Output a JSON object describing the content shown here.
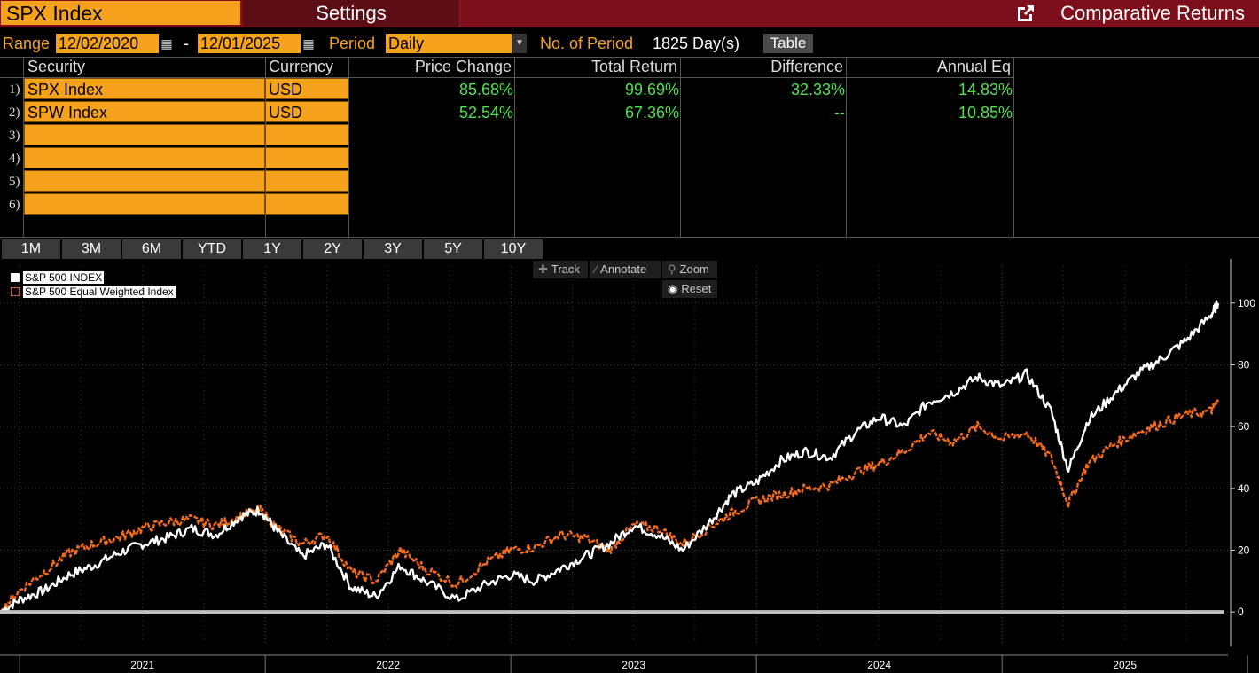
{
  "header": {
    "ticker": "SPX Index",
    "settings_label": "Settings",
    "title": "Comparative Returns",
    "title_icon": "external-link-icon"
  },
  "controls": {
    "range_label": "Range",
    "start_date": "12/02/2020",
    "dash": "-",
    "end_date": "12/01/2025",
    "calendar_icon": "calendar-icon",
    "period_label": "Period",
    "period_value": "Daily",
    "dropdown_icon": "chevron-down-icon",
    "num_period_label": "No. of Period",
    "num_period_value": "1825 Day(s)",
    "table_label": "Table"
  },
  "table": {
    "headers": [
      "Security",
      "Currency",
      "Price Change",
      "Total Return",
      "Difference",
      "Annual Eq"
    ],
    "rows": [
      {
        "num": "1)",
        "security": "SPX Index",
        "currency": "USD",
        "price_change": "85.68%",
        "total_return": "99.69%",
        "difference": "32.33%",
        "annual_eq": "14.83%"
      },
      {
        "num": "2)",
        "security": "SPW Index",
        "currency": "USD",
        "price_change": "52.54%",
        "total_return": "67.36%",
        "difference": "--",
        "annual_eq": "10.85%"
      },
      {
        "num": "3)",
        "security": "",
        "currency": ""
      },
      {
        "num": "4)",
        "security": "",
        "currency": ""
      },
      {
        "num": "5)",
        "security": "",
        "currency": ""
      },
      {
        "num": "6)",
        "security": "",
        "currency": ""
      }
    ]
  },
  "periods": [
    "1M",
    "3M",
    "6M",
    "YTD",
    "1Y",
    "2Y",
    "3Y",
    "5Y",
    "10Y"
  ],
  "toolbar": {
    "track": "Track",
    "annotate": "Annotate",
    "zoom": "Zoom",
    "reset": "Reset"
  },
  "chart_data": {
    "type": "line",
    "title": "",
    "xlabel": "",
    "ylabel": "",
    "ylim": [
      -10,
      112
    ],
    "y_ticks": [
      0,
      20,
      40,
      60,
      80,
      100
    ],
    "x_ticks": [
      "2021",
      "2022",
      "2023",
      "2024",
      "2025"
    ],
    "xlim": [
      2020.92,
      2025.92
    ],
    "legend": [
      "S&P 500 INDEX",
      "S&P 500 Equal Weighted Index"
    ],
    "legend_position": "top-left",
    "colors": {
      "spx": "#ffffff",
      "spw": "#f26a1b"
    },
    "series": [
      {
        "name": "S&P 500 INDEX",
        "x": [
          2020.92,
          2021.0,
          2021.1,
          2021.2,
          2021.3,
          2021.4,
          2021.5,
          2021.6,
          2021.7,
          2021.8,
          2021.9,
          2021.98,
          2022.05,
          2022.15,
          2022.25,
          2022.35,
          2022.45,
          2022.55,
          2022.65,
          2022.78,
          2022.9,
          2023.0,
          2023.1,
          2023.2,
          2023.3,
          2023.4,
          2023.5,
          2023.6,
          2023.7,
          2023.82,
          2023.9,
          2024.0,
          2024.1,
          2024.2,
          2024.3,
          2024.4,
          2024.5,
          2024.6,
          2024.7,
          2024.8,
          2024.9,
          2025.0,
          2025.1,
          2025.2,
          2025.27,
          2025.35,
          2025.45,
          2025.55,
          2025.65,
          2025.75,
          2025.85,
          2025.88
        ],
        "values": [
          0,
          4,
          7,
          12,
          15,
          19,
          22,
          24,
          27,
          25,
          31,
          33,
          26,
          18,
          22,
          8,
          5,
          15,
          10,
          4,
          9,
          12,
          10,
          14,
          18,
          22,
          28,
          25,
          20,
          30,
          38,
          42,
          49,
          52,
          50,
          58,
          63,
          60,
          68,
          71,
          76,
          73,
          77,
          65,
          46,
          62,
          70,
          77,
          82,
          88,
          96,
          100
        ]
      },
      {
        "name": "S&P 500 Equal Weighted Index",
        "x": [
          2020.92,
          2021.0,
          2021.1,
          2021.2,
          2021.3,
          2021.4,
          2021.5,
          2021.6,
          2021.7,
          2021.8,
          2021.9,
          2021.98,
          2022.05,
          2022.15,
          2022.25,
          2022.35,
          2022.45,
          2022.55,
          2022.65,
          2022.78,
          2022.9,
          2023.0,
          2023.1,
          2023.2,
          2023.3,
          2023.4,
          2023.5,
          2023.6,
          2023.7,
          2023.82,
          2023.9,
          2024.0,
          2024.1,
          2024.2,
          2024.3,
          2024.4,
          2024.5,
          2024.6,
          2024.7,
          2024.8,
          2024.9,
          2025.0,
          2025.1,
          2025.2,
          2025.27,
          2025.35,
          2025.45,
          2025.55,
          2025.65,
          2025.75,
          2025.85,
          2025.88
        ],
        "values": [
          0,
          7,
          13,
          19,
          22,
          24,
          27,
          29,
          30,
          28,
          31,
          33,
          27,
          22,
          25,
          13,
          10,
          20,
          14,
          9,
          16,
          20,
          21,
          25,
          24,
          20,
          28,
          27,
          22,
          28,
          32,
          36,
          38,
          40,
          41,
          45,
          48,
          52,
          58,
          55,
          60,
          56,
          58,
          50,
          35,
          48,
          54,
          58,
          61,
          64,
          65,
          68
        ]
      }
    ]
  }
}
